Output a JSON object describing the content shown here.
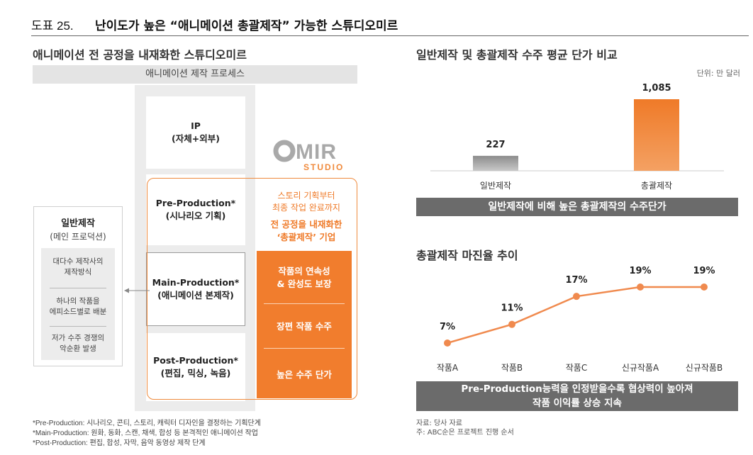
{
  "figure": {
    "number": "도표 25.",
    "title": "난이도가 높은 “애니메이션 총괄제작” 가능한 스튜디오미르"
  },
  "left": {
    "section_title": "애니메이션 전 공정을 내재화한 스튜디오미르",
    "process_header": "애니메이션 제작 프로세스",
    "stages": [
      {
        "name": "IP",
        "sub": "(자체+외부)"
      },
      {
        "name": "Pre-Production*",
        "sub": "(시나리오 기획)"
      },
      {
        "name": "Main-Production*",
        "sub": "(애니메이션 본제작)"
      },
      {
        "name": "Post-Production*",
        "sub": "(편집, 믹싱, 녹음)"
      }
    ],
    "logo": {
      "main": "MIR",
      "sub": "STUDIO"
    },
    "studio_desc": {
      "line1": "스토리 기획부터",
      "line2": "최종 작업 완료까지",
      "bold1": "전 공정을 내재화한",
      "bold2": "‘총괄제작’ 기업"
    },
    "strengths": [
      {
        "line1": "작품의 연속성",
        "line2": "& 완성도 보장"
      },
      {
        "line1": "장편 작품 수주",
        "line2": ""
      },
      {
        "line1": "높은 수주 단가",
        "line2": ""
      }
    ],
    "general": {
      "title": "일반제작",
      "subtitle": "(메인 프로덕션)",
      "items": [
        {
          "line1": "대다수 제작사의",
          "line2": "제작방식"
        },
        {
          "line1": "하나의 작품을",
          "line2": "에피소드별로 배분"
        },
        {
          "line1": "저가 수주 경쟁의",
          "line2": "악순환 발생"
        }
      ]
    },
    "footnotes": [
      "*Pre-Production: 시나리오, 콘티, 스토리, 캐릭터 디자인을 결정하는 기획단계",
      "*Main-Production: 원화, 동화, 스캔, 채색, 합성 등 본격적인 애니메이션 작업",
      "*Post-Production: 편집, 합성, 자막, 음악 동영상 제작 단계"
    ]
  },
  "right": {
    "bar_section_title": "일반제작 및 총괄제작 수주 평균 단가 비교",
    "unit_label": "단위: 만 달러",
    "bar_banner": "일반제작에 비해 높은 총괄제작의 수주단가",
    "line_section_title": "총괄제작 마진율 추이",
    "line_banner_line1": "Pre-Production능력을 인정받을수록 협상력이 높아져",
    "line_banner_line2": "작품 이익률 상승 지속",
    "source_line1": "자료: 당사 자료",
    "source_line2": "주: ABC순은 프로젝트 진행 순서"
  },
  "chart_data": [
    {
      "type": "bar",
      "title": "일반제작 및 총괄제작 수주 평균 단가 비교",
      "categories": [
        "일반제작",
        "총괄제작"
      ],
      "values": [
        227,
        1085
      ],
      "value_labels": [
        "227",
        "1,085"
      ],
      "unit": "단위: 만 달러",
      "colors": [
        "#a9a9a9",
        "#ef7a28"
      ],
      "ylim": [
        0,
        1085
      ]
    },
    {
      "type": "line",
      "title": "총괄제작 마진율 추이",
      "categories": [
        "작품A",
        "작품B",
        "작품C",
        "신규작품A",
        "신규작품B"
      ],
      "values": [
        7,
        11,
        17,
        19,
        19
      ],
      "value_labels": [
        "7%",
        "11%",
        "17%",
        "19%",
        "19%"
      ],
      "color": "#f08a4e",
      "ylim": [
        7,
        19
      ]
    }
  ]
}
